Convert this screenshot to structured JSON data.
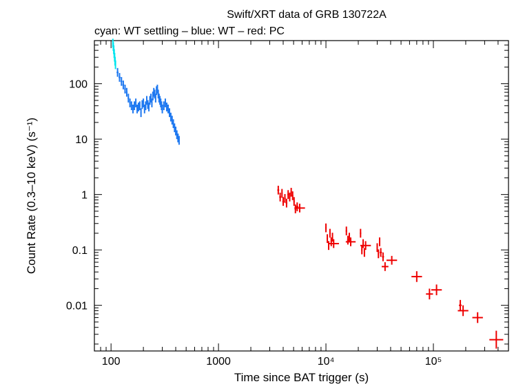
{
  "chart_data": {
    "type": "scatter",
    "title": "Swift/XRT data of GRB 130722A",
    "subtitle": "cyan: WT settling – blue: WT – red: PC",
    "xlabel": "Time since BAT trigger (s)",
    "ylabel": "Count Rate (0.3–10 keV) (s⁻¹)",
    "x_scale": "log",
    "y_scale": "log",
    "xlim": [
      70,
      500000
    ],
    "ylim": [
      0.0015,
      600
    ],
    "x_ticks": [
      {
        "value": 100,
        "label": "100"
      },
      {
        "value": 1000,
        "label": "1000"
      },
      {
        "value": 10000,
        "label": "10⁴"
      },
      {
        "value": 100000,
        "label": "10⁵"
      }
    ],
    "y_ticks": [
      {
        "value": 0.01,
        "label": "0.01"
      },
      {
        "value": 0.1,
        "label": "0.1"
      },
      {
        "value": 1,
        "label": "1"
      },
      {
        "value": 10,
        "label": "10"
      },
      {
        "value": 100,
        "label": "100"
      }
    ],
    "grid": false,
    "legend": "none",
    "series": [
      {
        "color": "#00e5ee",
        "points": [
          {
            "x": 104,
            "y": 540
          },
          {
            "x": 105,
            "y": 470
          },
          {
            "x": 106,
            "y": 410
          },
          {
            "x": 107,
            "y": 350
          },
          {
            "x": 108,
            "y": 300
          },
          {
            "x": 109,
            "y": 255
          },
          {
            "x": 110,
            "y": 220
          }
        ]
      },
      {
        "color": "#1e78f0",
        "points": [
          {
            "x": 115,
            "y": 160
          },
          {
            "x": 120,
            "y": 130
          },
          {
            "x": 125,
            "y": 110
          },
          {
            "x": 130,
            "y": 95
          },
          {
            "x": 135,
            "y": 80
          },
          {
            "x": 140,
            "y": 70
          },
          {
            "x": 145,
            "y": 55
          },
          {
            "x": 150,
            "y": 45
          },
          {
            "x": 155,
            "y": 40
          },
          {
            "x": 160,
            "y": 35
          },
          {
            "x": 165,
            "y": 40
          },
          {
            "x": 170,
            "y": 45
          },
          {
            "x": 175,
            "y": 35
          },
          {
            "x": 180,
            "y": 38
          },
          {
            "x": 185,
            "y": 40
          },
          {
            "x": 190,
            "y": 30
          },
          {
            "x": 195,
            "y": 42
          },
          {
            "x": 200,
            "y": 45
          },
          {
            "x": 205,
            "y": 35
          },
          {
            "x": 210,
            "y": 40
          },
          {
            "x": 215,
            "y": 50
          },
          {
            "x": 220,
            "y": 42
          },
          {
            "x": 225,
            "y": 38
          },
          {
            "x": 230,
            "y": 50
          },
          {
            "x": 235,
            "y": 55
          },
          {
            "x": 240,
            "y": 45
          },
          {
            "x": 245,
            "y": 60
          },
          {
            "x": 250,
            "y": 70
          },
          {
            "x": 255,
            "y": 65
          },
          {
            "x": 260,
            "y": 55
          },
          {
            "x": 265,
            "y": 75
          },
          {
            "x": 270,
            "y": 80
          },
          {
            "x": 275,
            "y": 65
          },
          {
            "x": 280,
            "y": 55
          },
          {
            "x": 285,
            "y": 50
          },
          {
            "x": 290,
            "y": 45
          },
          {
            "x": 295,
            "y": 40
          },
          {
            "x": 300,
            "y": 35
          },
          {
            "x": 310,
            "y": 40
          },
          {
            "x": 320,
            "y": 45
          },
          {
            "x": 330,
            "y": 38
          },
          {
            "x": 340,
            "y": 35
          },
          {
            "x": 350,
            "y": 30
          },
          {
            "x": 360,
            "y": 25
          },
          {
            "x": 370,
            "y": 22
          },
          {
            "x": 380,
            "y": 19
          },
          {
            "x": 390,
            "y": 16
          },
          {
            "x": 400,
            "y": 14
          },
          {
            "x": 410,
            "y": 12
          },
          {
            "x": 420,
            "y": 10.5
          },
          {
            "x": 430,
            "y": 9.5
          }
        ]
      },
      {
        "color": "#ee0000",
        "points": [
          {
            "x": 3600,
            "y": 1.2
          },
          {
            "x": 3750,
            "y": 0.9
          },
          {
            "x": 3900,
            "y": 1.05
          },
          {
            "x": 4000,
            "y": 0.75
          },
          {
            "x": 4150,
            "y": 0.85
          },
          {
            "x": 4300,
            "y": 0.7
          },
          {
            "x": 4450,
            "y": 1.0
          },
          {
            "x": 4600,
            "y": 0.9
          },
          {
            "x": 4750,
            "y": 1.1
          },
          {
            "x": 4900,
            "y": 0.95
          },
          {
            "x": 5050,
            "y": 0.75
          },
          {
            "x": 5200,
            "y": 0.55
          },
          {
            "x": 5400,
            "y": 0.6
          },
          {
            "x": 5700,
            "y": 0.57
          },
          {
            "x": 10000,
            "y": 0.25
          },
          {
            "x": 10300,
            "y": 0.16
          },
          {
            "x": 10600,
            "y": 0.12
          },
          {
            "x": 10900,
            "y": 0.2
          },
          {
            "x": 11200,
            "y": 0.14
          },
          {
            "x": 11500,
            "y": 0.17
          },
          {
            "x": 11800,
            "y": 0.13
          },
          {
            "x": 15500,
            "y": 0.22
          },
          {
            "x": 16000,
            "y": 0.15
          },
          {
            "x": 16500,
            "y": 0.17
          },
          {
            "x": 17000,
            "y": 0.14
          },
          {
            "x": 21000,
            "y": 0.2
          },
          {
            "x": 21600,
            "y": 0.1
          },
          {
            "x": 22200,
            "y": 0.13
          },
          {
            "x": 22800,
            "y": 0.09
          },
          {
            "x": 23400,
            "y": 0.12
          },
          {
            "x": 30000,
            "y": 0.11
          },
          {
            "x": 30800,
            "y": 0.085
          },
          {
            "x": 31600,
            "y": 0.14
          },
          {
            "x": 32400,
            "y": 0.09
          },
          {
            "x": 34000,
            "y": 0.075
          },
          {
            "x": 35500,
            "y": 0.05
          },
          {
            "x": 41000,
            "y": 0.065
          },
          {
            "x": 70000,
            "y": 0.033
          },
          {
            "x": 92000,
            "y": 0.016
          },
          {
            "x": 107000,
            "y": 0.019
          },
          {
            "x": 178000,
            "y": 0.01
          },
          {
            "x": 189000,
            "y": 0.008
          },
          {
            "x": 258000,
            "y": 0.006
          },
          {
            "x": 385000,
            "y": 0.0024
          }
        ]
      }
    ]
  }
}
